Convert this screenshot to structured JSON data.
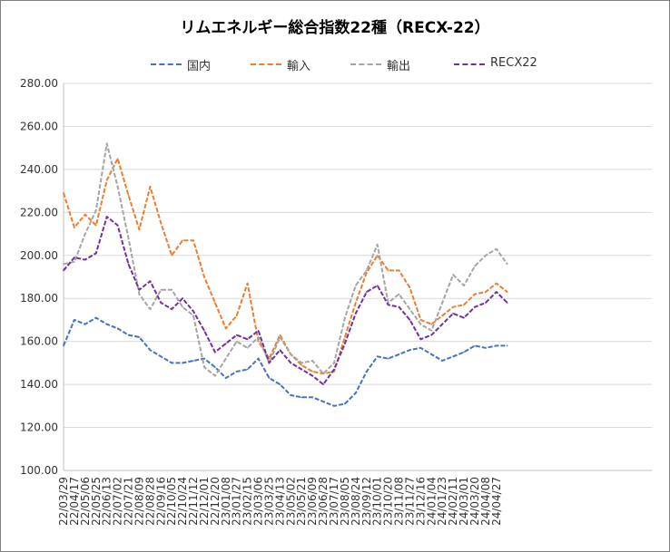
{
  "chart_data": {
    "type": "line",
    "title": "リムエネルギー総合指数22種（RECX-22）",
    "ylim": [
      100,
      280
    ],
    "yticks": [
      "100.00",
      "120.00",
      "140.00",
      "160.00",
      "180.00",
      "200.00",
      "220.00",
      "240.00",
      "260.00",
      "280.00"
    ],
    "x_tick_labels": [
      "22/03/29",
      "22/04/17",
      "22/05/06",
      "22/05/25",
      "22/06/13",
      "22/07/02",
      "22/07/21",
      "22/08/09",
      "22/08/28",
      "22/09/16",
      "22/10/05",
      "22/10/24",
      "22/11/12",
      "22/12/01",
      "22/12/20",
      "23/01/08",
      "23/01/27",
      "23/02/15",
      "23/03/06",
      "23/03/25",
      "23/04/13",
      "23/05/02",
      "23/05/21",
      "23/06/09",
      "23/06/28",
      "23/07/17",
      "23/08/05",
      "23/08/24",
      "23/09/12",
      "23/10/01",
      "23/10/20",
      "23/11/08",
      "23/11/27",
      "23/12/16",
      "24/01/04",
      "24/01/23",
      "24/02/11",
      "24/03/01",
      "24/03/20",
      "24/04/08",
      "24/04/27"
    ],
    "x": [
      "22/03/29",
      "22/04/17",
      "22/05/06",
      "22/05/25",
      "22/06/13",
      "22/07/02",
      "22/07/21",
      "22/08/09",
      "22/08/28",
      "22/09/16",
      "22/10/05",
      "22/10/24",
      "22/11/12",
      "22/12/01",
      "22/12/20",
      "23/01/08",
      "23/01/27",
      "23/02/15",
      "23/03/06",
      "23/03/25",
      "23/04/13",
      "23/05/02",
      "23/05/21",
      "23/06/09",
      "23/06/28",
      "23/07/17",
      "23/08/05",
      "23/08/24",
      "23/09/12",
      "23/10/01",
      "23/10/20",
      "23/11/08",
      "23/11/27",
      "23/12/16",
      "24/01/04",
      "24/01/23",
      "24/02/11",
      "24/03/01",
      "24/03/20",
      "24/04/08",
      "24/04/27",
      "24/05/10"
    ],
    "series": [
      {
        "name": "国内",
        "color": "#4472C4",
        "values": [
          158,
          170,
          168,
          171,
          168,
          166,
          163,
          162,
          156,
          153,
          150,
          150,
          151,
          152,
          148,
          143,
          146,
          147,
          152,
          143,
          140,
          135,
          134,
          134,
          132,
          130,
          131,
          136,
          146,
          153,
          152,
          154,
          156,
          157,
          154,
          151,
          153,
          155,
          158,
          157,
          158,
          158
        ]
      },
      {
        "name": "輸入",
        "color": "#ED7D31",
        "values": [
          229,
          213,
          219,
          214,
          235,
          245,
          228,
          212,
          232,
          215,
          200,
          207,
          207,
          190,
          178,
          166,
          172,
          187,
          160,
          152,
          163,
          154,
          149,
          146,
          145,
          146,
          162,
          178,
          192,
          200,
          193,
          193,
          185,
          170,
          168,
          172,
          176,
          177,
          182,
          183,
          187,
          183
        ]
      },
      {
        "name": "輸出",
        "color": "#A5A5A5",
        "values": [
          196,
          197,
          210,
          221,
          252,
          232,
          208,
          182,
          175,
          184,
          184,
          176,
          172,
          148,
          144,
          152,
          160,
          157,
          162,
          150,
          162,
          154,
          150,
          151,
          145,
          150,
          171,
          186,
          193,
          205,
          178,
          182,
          175,
          168,
          165,
          178,
          191,
          186,
          195,
          200,
          203,
          196
        ]
      },
      {
        "name": "RECX22",
        "color": "#7030A0",
        "values": [
          193,
          199,
          198,
          201,
          218,
          214,
          196,
          184,
          188,
          178,
          175,
          180,
          174,
          165,
          155,
          159,
          163,
          161,
          165,
          150,
          156,
          150,
          147,
          144,
          140,
          147,
          159,
          173,
          183,
          186,
          177,
          176,
          170,
          161,
          163,
          168,
          173,
          171,
          176,
          178,
          183,
          178
        ]
      }
    ]
  }
}
